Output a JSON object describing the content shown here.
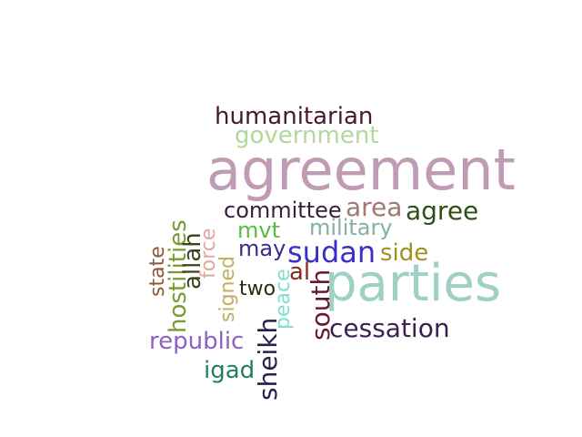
{
  "words": [
    {
      "id": "agreement",
      "text": "agreement",
      "color": "#c09cb4"
    },
    {
      "id": "parties",
      "text": "parties",
      "color": "#9fd0c6"
    },
    {
      "id": "humanitarian",
      "text": "humanitarian",
      "color": "#4a1a2a"
    },
    {
      "id": "government",
      "text": "government",
      "color": "#b2d89a"
    },
    {
      "id": "committee",
      "text": "committee",
      "color": "#3a2040"
    },
    {
      "id": "area",
      "text": "area",
      "color": "#a07870"
    },
    {
      "id": "agree",
      "text": "agree",
      "color": "#2e5016"
    },
    {
      "id": "military",
      "text": "military",
      "color": "#86b0a4"
    },
    {
      "id": "mvt",
      "text": "mvt",
      "color": "#55c040"
    },
    {
      "id": "sudan",
      "text": "sudan",
      "color": "#3c2ec8"
    },
    {
      "id": "side",
      "text": "side",
      "color": "#a0901e"
    },
    {
      "id": "may",
      "text": "may",
      "color": "#3a2a8c"
    },
    {
      "id": "al",
      "text": "al",
      "color": "#8a2a1c"
    },
    {
      "id": "two",
      "text": "two",
      "color": "#2a2a10"
    },
    {
      "id": "cessation",
      "text": "cessation",
      "color": "#3e2050"
    },
    {
      "id": "republic",
      "text": "republic",
      "color": "#9060c0"
    },
    {
      "id": "igad",
      "text": "igad",
      "color": "#208060"
    },
    {
      "id": "hostilities",
      "text": "hostilities",
      "color": "#7a9a30"
    },
    {
      "id": "allah",
      "text": "allah",
      "color": "#404018"
    },
    {
      "id": "state",
      "text": "state",
      "color": "#8a5a3a"
    },
    {
      "id": "force",
      "text": "force",
      "color": "#e0a8a0"
    },
    {
      "id": "signed",
      "text": "signed",
      "color": "#c0b060"
    },
    {
      "id": "peace",
      "text": "peace",
      "color": "#80e0d0"
    },
    {
      "id": "south",
      "text": "south",
      "color": "#6a1830"
    },
    {
      "id": "sheikh",
      "text": "sheikh",
      "color": "#281e50"
    }
  ]
}
